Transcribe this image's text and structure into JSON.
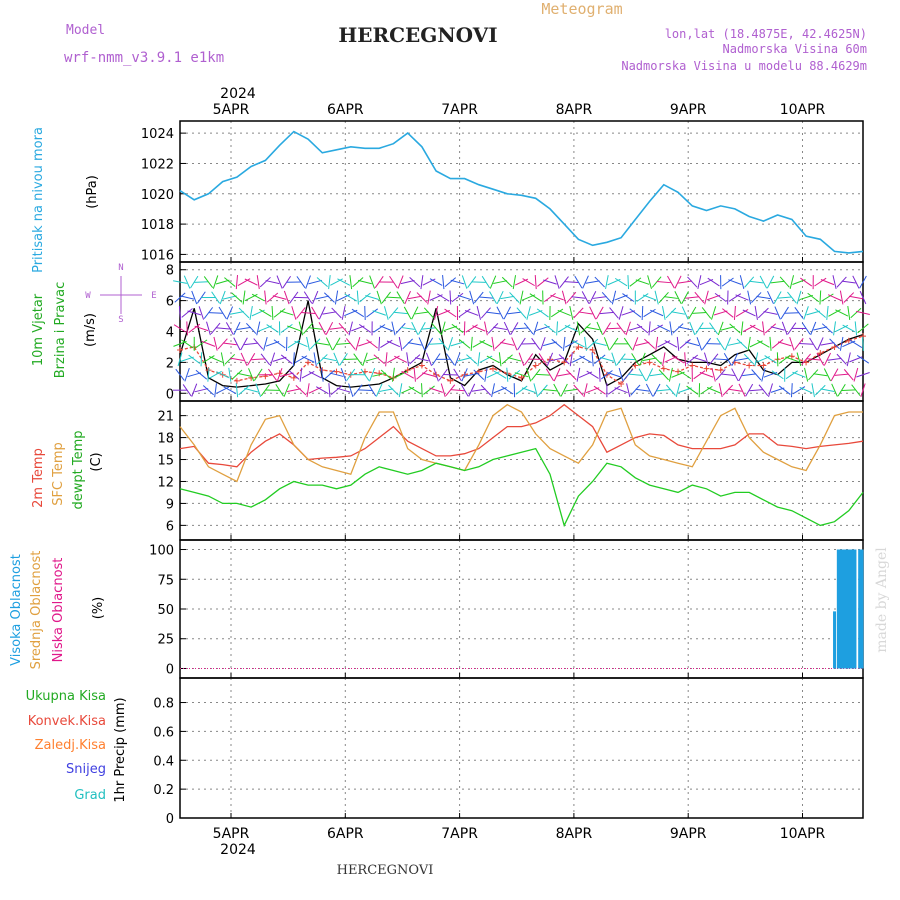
{
  "header": {
    "model_label": "Model",
    "model_name": "wrf-nmm_v3.9.1 e1km",
    "title": "HERCEGNOVI",
    "subtitle": "Meteogram",
    "lonlat": "lon,lat (18.4875E, 42.4625N)",
    "altitude": "Nadmorska Visina 60m",
    "model_altitude": "Nadmorska Visina u modelu 88.4629m",
    "watermark": "made by Angel",
    "footer": "HERCEGNOVI"
  },
  "colors": {
    "pressure": "#2aa9e0",
    "temp2m": "#e8493b",
    "sfc_temp": "#e0a040",
    "dewpt": "#22cc22",
    "high_cloud": "#1e9fe0",
    "mid_cloud": "#e0a040",
    "low_cloud": "#e0188a",
    "wind_speed": "#000000",
    "wind_dir": "#e8493b",
    "precip_total": "#22cc22",
    "precip_conv": "#e8493b",
    "precip_frozen": "#ff8030",
    "snow": "#4040e0",
    "graupel": "#22c0c0"
  },
  "time_axis": {
    "year": "2024",
    "days": [
      "5APR",
      "6APR",
      "7APR",
      "8APR",
      "9APR",
      "10APR"
    ]
  },
  "chart_data": [
    {
      "type": "line",
      "panel": "pressure",
      "ylabel_lines": [
        "Pritisak na nivou mora",
        "(hPa)"
      ],
      "ylim": [
        1015.5,
        1024.8
      ],
      "yticks": [
        1016,
        1018,
        1020,
        1022,
        1024
      ],
      "grid": true,
      "x_hours": [
        0,
        3,
        6,
        9,
        12,
        15,
        18,
        21,
        24,
        27,
        30,
        33,
        36,
        39,
        42,
        45,
        48,
        51,
        54,
        57,
        60,
        63,
        66,
        69,
        72,
        75,
        78,
        81,
        84,
        87,
        90,
        93,
        96,
        99,
        102,
        105,
        108,
        111,
        114,
        117,
        120,
        123,
        126,
        129,
        132,
        135,
        138,
        141,
        144
      ],
      "series": [
        {
          "values": [
            1020.2,
            1019.6,
            1020.0,
            1020.8,
            1021.1,
            1021.8,
            1022.2,
            1023.2,
            1024.1,
            1023.6,
            1022.7,
            1022.9,
            1023.1,
            1023.0,
            1023.0,
            1023.3,
            1024.0,
            1023.1,
            1021.5,
            1021.0,
            1021.0,
            1020.6,
            1020.3,
            1020.0,
            1019.9,
            1019.7,
            1019.0,
            1018.0,
            1017.0,
            1016.6,
            1016.8,
            1017.1,
            1018.3,
            1019.5,
            1020.6,
            1020.1,
            1019.2,
            1018.9,
            1019.2,
            1019.0,
            1018.5,
            1018.2,
            1018.6,
            1018.3,
            1017.2,
            1017.0,
            1016.2,
            1016.1,
            1016.2
          ]
        }
      ]
    },
    {
      "type": "line",
      "panel": "wind",
      "ylabel_lines": [
        "10m Vjetar",
        "Brzina i Pravac",
        "(m/s)"
      ],
      "compass": {
        "n": "N",
        "s": "S",
        "w": "W",
        "e": "E"
      },
      "ylim": [
        -0.5,
        8.5
      ],
      "yticks": [
        0,
        2,
        4,
        6,
        8
      ],
      "grid": true,
      "x_hours": [
        0,
        3,
        6,
        9,
        12,
        15,
        18,
        21,
        24,
        27,
        30,
        33,
        36,
        39,
        42,
        45,
        48,
        51,
        54,
        57,
        60,
        63,
        66,
        69,
        72,
        75,
        78,
        81,
        84,
        87,
        90,
        93,
        96,
        99,
        102,
        105,
        108,
        111,
        114,
        117,
        120,
        123,
        126,
        129,
        132,
        135,
        138,
        141,
        144
      ],
      "series": [
        {
          "name": "speed",
          "values": [
            2.5,
            5.5,
            1.0,
            0.5,
            0.4,
            0.5,
            0.6,
            0.8,
            1.8,
            6.0,
            1.0,
            0.5,
            0.4,
            0.5,
            0.6,
            1.0,
            1.5,
            2.0,
            5.5,
            1.0,
            0.5,
            1.5,
            1.8,
            1.2,
            0.8,
            2.5,
            1.5,
            2.0,
            4.5,
            3.5,
            0.5,
            1.0,
            2.0,
            2.5,
            3.0,
            2.2,
            2.0,
            2.0,
            1.8,
            2.5,
            2.8,
            1.5,
            1.2,
            2.0,
            2.0,
            2.5,
            3.0,
            3.5,
            3.8
          ]
        },
        {
          "name": "direction",
          "values": [
            2.8,
            3.0,
            1.5,
            1.2,
            0.8,
            1.0,
            1.1,
            1.3,
            1.0,
            2.0,
            1.5,
            1.4,
            1.2,
            1.4,
            1.3,
            1.0,
            1.5,
            1.8,
            1.2,
            0.8,
            1.2,
            1.4,
            1.6,
            1.3,
            1.0,
            1.8,
            2.2,
            2.0,
            3.0,
            2.8,
            1.2,
            0.6,
            1.8,
            2.0,
            1.6,
            1.4,
            1.8,
            1.6,
            1.5,
            2.0,
            1.8,
            1.8,
            2.2,
            2.4,
            2.0,
            2.6,
            3.0,
            3.4,
            3.7
          ]
        }
      ]
    },
    {
      "type": "line",
      "panel": "temperature",
      "ylabel_lines": [
        "2m Temp",
        "SFC Temp",
        "dewpt Temp",
        "(C)"
      ],
      "ylim": [
        4,
        23
      ],
      "yticks": [
        6,
        9,
        12,
        15,
        18,
        21
      ],
      "grid": true,
      "x_hours": [
        0,
        3,
        6,
        9,
        12,
        15,
        18,
        21,
        24,
        27,
        30,
        33,
        36,
        39,
        42,
        45,
        48,
        51,
        54,
        57,
        60,
        63,
        66,
        69,
        72,
        75,
        78,
        81,
        84,
        87,
        90,
        93,
        96,
        99,
        102,
        105,
        108,
        111,
        114,
        117,
        120,
        123,
        126,
        129,
        132,
        135,
        138,
        141,
        144
      ],
      "series": [
        {
          "name": "2m Temp",
          "values": [
            16.5,
            16.8,
            14.5,
            14.3,
            14.0,
            16.0,
            17.5,
            18.5,
            17.0,
            15.0,
            15.2,
            15.3,
            15.5,
            16.5,
            18.0,
            19.5,
            17.5,
            16.5,
            15.5,
            15.5,
            15.8,
            16.5,
            18.0,
            19.5,
            19.5,
            20.0,
            21.0,
            22.5,
            21.0,
            19.5,
            16.0,
            17.0,
            18.0,
            18.5,
            18.3,
            17.0,
            16.5,
            16.5,
            16.5,
            17.0,
            18.5,
            18.5,
            17.0,
            16.8,
            16.5,
            16.8,
            17.0,
            17.2,
            17.5
          ]
        },
        {
          "name": "SFC Temp",
          "values": [
            19.5,
            17.0,
            14.0,
            13.0,
            12.0,
            17.0,
            20.5,
            21.0,
            17.0,
            15.0,
            14.0,
            13.5,
            13.0,
            18.0,
            21.5,
            21.5,
            16.5,
            15.0,
            14.5,
            14.0,
            13.5,
            17.0,
            21.0,
            22.5,
            21.5,
            18.5,
            16.5,
            15.5,
            14.5,
            17.0,
            21.5,
            22.0,
            17.0,
            15.5,
            15.0,
            14.5,
            14.0,
            17.5,
            21.0,
            22.0,
            18.0,
            16.0,
            15.0,
            14.0,
            13.5,
            17.0,
            21.0,
            21.5,
            21.5
          ]
        },
        {
          "name": "dewpt Temp",
          "values": [
            11.0,
            10.5,
            10.0,
            9.0,
            9.0,
            8.5,
            9.5,
            11.0,
            12.0,
            11.5,
            11.5,
            11.0,
            11.5,
            13.0,
            14.0,
            13.5,
            13.0,
            13.5,
            14.5,
            14.0,
            13.5,
            14.0,
            15.0,
            15.5,
            16.0,
            16.5,
            13.0,
            6.0,
            10.0,
            12.0,
            14.5,
            14.0,
            12.5,
            11.5,
            11.0,
            10.5,
            11.5,
            11.0,
            10.0,
            10.5,
            10.5,
            9.5,
            8.5,
            8.0,
            7.0,
            6.0,
            6.5,
            8.0,
            10.5
          ]
        }
      ]
    },
    {
      "type": "bar",
      "panel": "cloud",
      "ylabel_lines": [
        "Visoka Oblacnost",
        "Srednja Oblacnost",
        "Niska Oblacnost",
        "(%)"
      ],
      "ylim": [
        -8,
        108
      ],
      "yticks": [
        0,
        25,
        50,
        75,
        100
      ],
      "grid": true,
      "series": [
        {
          "name": "Visoka Oblacnost",
          "x_hours": [
            138.0,
            138.8,
            139.3,
            139.8,
            140.3,
            140.8,
            141.3,
            141.8,
            142.3,
            143.3,
            143.8
          ],
          "values": [
            48,
            100,
            100,
            100,
            100,
            100,
            100,
            100,
            100,
            100,
            100
          ]
        },
        {
          "name": "Srednja Oblacnost",
          "x_hours": [],
          "values": []
        },
        {
          "name": "Niska Oblacnost",
          "x_hours": [],
          "values": []
        }
      ]
    },
    {
      "type": "bar",
      "panel": "precip",
      "ylabel_lines": [
        "1hr Precip (mm)"
      ],
      "legend": [
        "Ukupna Kisa",
        "Konvek.Kisa",
        "Zaledj.Kisa",
        "Snijeg",
        "Grad"
      ],
      "ylim": [
        0,
        0.97
      ],
      "yticks": [
        0,
        0.2,
        0.4,
        0.6,
        0.8
      ],
      "ytick_labels": [
        "0",
        "0.2",
        "0.4",
        "0.6",
        "0.8"
      ],
      "grid": true,
      "series": []
    }
  ]
}
